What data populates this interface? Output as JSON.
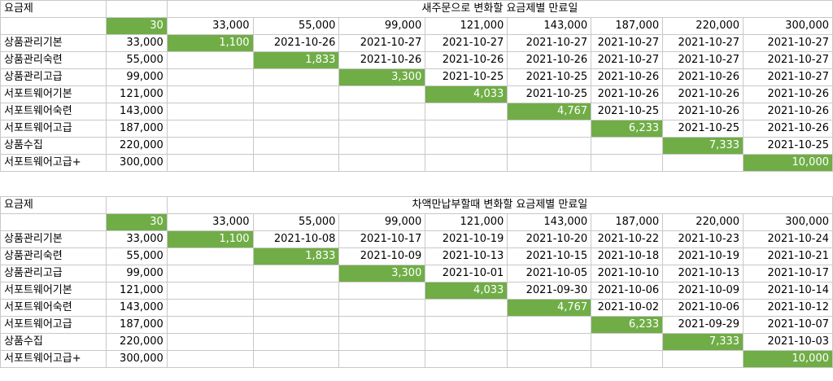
{
  "table1": {
    "header_label": "요금제",
    "title": "새주문으로 변화할 요금제별 만료일",
    "days": "30",
    "columns": [
      "33,000",
      "55,000",
      "99,000",
      "121,000",
      "143,000",
      "187,000",
      "220,000",
      "300,000"
    ],
    "rows": [
      {
        "name": "상품관리기본",
        "price": "33,000",
        "cells": [
          "1,100",
          "2021-10-26",
          "2021-10-27",
          "2021-10-27",
          "2021-10-27",
          "2021-10-27",
          "2021-10-27",
          "2021-10-27"
        ]
      },
      {
        "name": "상품관리숙련",
        "price": "55,000",
        "cells": [
          "",
          "1,833",
          "2021-10-26",
          "2021-10-26",
          "2021-10-26",
          "2021-10-27",
          "2021-10-27",
          "2021-10-27"
        ]
      },
      {
        "name": "상품관리고급",
        "price": "99,000",
        "cells": [
          "",
          "",
          "3,300",
          "2021-10-25",
          "2021-10-25",
          "2021-10-26",
          "2021-10-26",
          "2021-10-27"
        ]
      },
      {
        "name": "서포트웨어기본",
        "price": "121,000",
        "cells": [
          "",
          "",
          "",
          "4,033",
          "2021-10-25",
          "2021-10-26",
          "2021-10-26",
          "2021-10-26"
        ]
      },
      {
        "name": "서포트웨어숙련",
        "price": "143,000",
        "cells": [
          "",
          "",
          "",
          "",
          "4,767",
          "2021-10-25",
          "2021-10-26",
          "2021-10-26"
        ]
      },
      {
        "name": "서포트웨어고급",
        "price": "187,000",
        "cells": [
          "",
          "",
          "",
          "",
          "",
          "6,233",
          "2021-10-25",
          "2021-10-26"
        ]
      },
      {
        "name": "상품수집",
        "price": "220,000",
        "cells": [
          "",
          "",
          "",
          "",
          "",
          "",
          "7,333",
          "2021-10-25"
        ]
      },
      {
        "name": "서포트웨어고급+",
        "price": "300,000",
        "cells": [
          "",
          "",
          "",
          "",
          "",
          "",
          "",
          "10,000"
        ]
      }
    ]
  },
  "table2": {
    "header_label": "요금제",
    "title": "차액만납부할때 변화할 요금제별 만료일",
    "days": "30",
    "columns": [
      "33,000",
      "55,000",
      "99,000",
      "121,000",
      "143,000",
      "187,000",
      "220,000",
      "300,000"
    ],
    "rows": [
      {
        "name": "상품관리기본",
        "price": "33,000",
        "cells": [
          "1,100",
          "2021-10-08",
          "2021-10-17",
          "2021-10-19",
          "2021-10-20",
          "2021-10-22",
          "2021-10-23",
          "2021-10-24"
        ]
      },
      {
        "name": "상품관리숙련",
        "price": "55,000",
        "cells": [
          "",
          "1,833",
          "2021-10-09",
          "2021-10-13",
          "2021-10-15",
          "2021-10-18",
          "2021-10-19",
          "2021-10-21"
        ]
      },
      {
        "name": "상품관리고급",
        "price": "99,000",
        "cells": [
          "",
          "",
          "3,300",
          "2021-10-01",
          "2021-10-05",
          "2021-10-10",
          "2021-10-13",
          "2021-10-17"
        ]
      },
      {
        "name": "서포트웨어기본",
        "price": "121,000",
        "cells": [
          "",
          "",
          "",
          "4,033",
          "2021-09-30",
          "2021-10-06",
          "2021-10-09",
          "2021-10-14"
        ]
      },
      {
        "name": "서포트웨어숙련",
        "price": "143,000",
        "cells": [
          "",
          "",
          "",
          "",
          "4,767",
          "2021-10-02",
          "2021-10-06",
          "2021-10-12"
        ]
      },
      {
        "name": "서포트웨어고급",
        "price": "187,000",
        "cells": [
          "",
          "",
          "",
          "",
          "",
          "6,233",
          "2021-09-29",
          "2021-10-07"
        ]
      },
      {
        "name": "상품수집",
        "price": "220,000",
        "cells": [
          "",
          "",
          "",
          "",
          "",
          "",
          "7,333",
          "2021-10-03"
        ]
      },
      {
        "name": "서포트웨어고급+",
        "price": "300,000",
        "cells": [
          "",
          "",
          "",
          "",
          "",
          "",
          "",
          "10,000"
        ]
      }
    ]
  },
  "colors": {
    "highlight": "#70ad47",
    "grid": "#c8c8c8"
  }
}
